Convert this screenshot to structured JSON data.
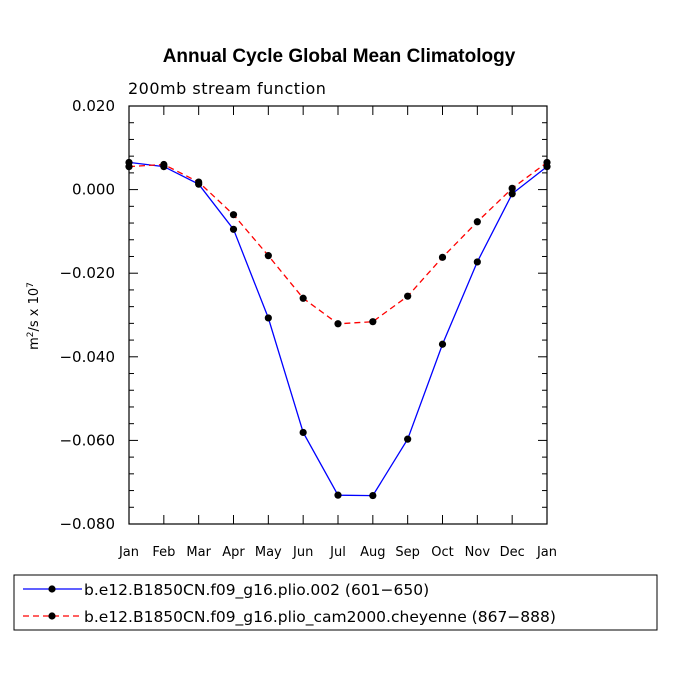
{
  "chart_data": {
    "type": "line",
    "title": "Annual Cycle Global Mean Climatology",
    "subtitle": "200mb stream function",
    "ylabel_base": "m",
    "ylabel_exp": "2",
    "ylabel_mid": "/s x 10",
    "ylabel_exp2": "7",
    "xlabel": "",
    "ylim": [
      -0.08,
      0.02
    ],
    "yticks": [
      0.02,
      0.0,
      -0.02,
      -0.04,
      -0.06,
      -0.08
    ],
    "ytick_labels": [
      "0.020",
      "0.000",
      "−0.020",
      "−0.040",
      "−0.060",
      "−0.080"
    ],
    "categories": [
      "Jan",
      "Feb",
      "Mar",
      "Apr",
      "May",
      "Jun",
      "Jul",
      "Aug",
      "Sep",
      "Oct",
      "Nov",
      "Dec",
      "Jan"
    ],
    "series": [
      {
        "name": "b.e12.B1850CN.f09_g16.plio.002 (601−650)",
        "color": "#0000ff",
        "style": "solid",
        "values": [
          0.0065,
          0.0055,
          0.0013,
          -0.0095,
          -0.0307,
          -0.0581,
          -0.0731,
          -0.0732,
          -0.0597,
          -0.037,
          -0.0173,
          -0.001,
          0.0055
        ]
      },
      {
        "name": "b.e12.B1850CN.f09_g16.plio_cam2000.cheyenne (867−888)",
        "color": "#ff0000",
        "style": "dashed",
        "values": [
          0.0055,
          0.006,
          0.0018,
          -0.006,
          -0.0158,
          -0.026,
          -0.0321,
          -0.0316,
          -0.0255,
          -0.0162,
          -0.0077,
          0.0003,
          0.0065
        ]
      }
    ]
  }
}
